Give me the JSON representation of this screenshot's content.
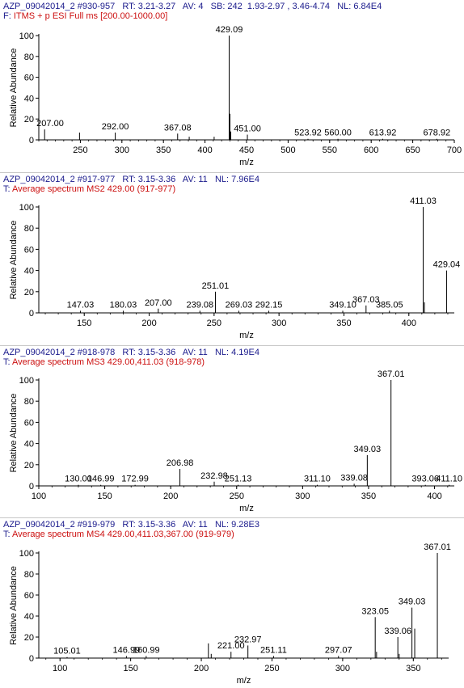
{
  "colors": {
    "header": "#1a1a8c",
    "filter_red": "#cc1010",
    "axis": "#000000",
    "peak": "#000000"
  },
  "chart_data": [
    {
      "type": "bar",
      "header_line1": "AZP_09042014_2 #930-957   RT: 3.21-3.27   AV: 4   SB: 242  1.93-2.97 , 3.46-4.74   NL: 6.84E4",
      "header_line2_prefix": "F: ",
      "header_line2_filter": "ITMS + p ESI Full ms [200.00-1000.00]",
      "xlabel": "m/z",
      "ylabel": "Relative Abundance",
      "xlim": [
        200,
        700
      ],
      "ylim": [
        0,
        100
      ],
      "xticks": [
        250,
        300,
        350,
        400,
        450,
        500,
        550,
        600,
        650,
        700
      ],
      "yticks": [
        0,
        20,
        40,
        60,
        80,
        100
      ],
      "peaks": [
        {
          "x": 207.0,
          "y": 10,
          "label": "207.00"
        },
        {
          "x": 249.0,
          "y": 7
        },
        {
          "x": 292.0,
          "y": 7,
          "label": "292.00"
        },
        {
          "x": 367.08,
          "y": 6,
          "label": "367.08"
        },
        {
          "x": 381.0,
          "y": 3
        },
        {
          "x": 411.0,
          "y": 3
        },
        {
          "x": 429.09,
          "y": 100,
          "label": "429.09"
        },
        {
          "x": 430.0,
          "y": 25
        },
        {
          "x": 431.0,
          "y": 8
        },
        {
          "x": 451.0,
          "y": 5,
          "label": "451.00"
        },
        {
          "x": 523.92,
          "y": 1,
          "label": "523.92"
        },
        {
          "x": 560.0,
          "y": 1,
          "label": "560.00"
        },
        {
          "x": 613.92,
          "y": 1,
          "label": "613.92"
        },
        {
          "x": 678.92,
          "y": 1,
          "label": "678.92"
        }
      ]
    },
    {
      "type": "bar",
      "header_line1": "AZP_09042014_2 #917-977   RT: 3.15-3.36   AV: 11   NL: 7.96E4",
      "header_line2_prefix": "T: ",
      "header_line2_filter": "Average spectrum MS2 429.00 (917-977)",
      "xlabel": "m/z",
      "ylabel": "Relative Abundance",
      "xlim": [
        115,
        435
      ],
      "ylim": [
        0,
        100
      ],
      "xticks": [
        150,
        200,
        250,
        300,
        350,
        400
      ],
      "yticks": [
        0,
        20,
        40,
        60,
        80,
        100
      ],
      "peaks": [
        {
          "x": 147.03,
          "y": 2,
          "label": "147.03"
        },
        {
          "x": 180.03,
          "y": 2,
          "label": "180.03"
        },
        {
          "x": 207.0,
          "y": 4,
          "label": "207.00"
        },
        {
          "x": 239.08,
          "y": 2,
          "label": "239.08"
        },
        {
          "x": 251.01,
          "y": 20,
          "label": "251.01"
        },
        {
          "x": 269.03,
          "y": 2,
          "label": "269.03"
        },
        {
          "x": 292.15,
          "y": 2,
          "label": "292.15"
        },
        {
          "x": 349.1,
          "y": 2,
          "label": "349.10"
        },
        {
          "x": 367.03,
          "y": 7,
          "label": "367.03"
        },
        {
          "x": 385.05,
          "y": 2,
          "label": "385.05"
        },
        {
          "x": 411.03,
          "y": 100,
          "label": "411.03"
        },
        {
          "x": 412.0,
          "y": 10
        },
        {
          "x": 429.04,
          "y": 40,
          "label": "429.04"
        }
      ]
    },
    {
      "type": "bar",
      "header_line1": "AZP_09042014_2 #918-978   RT: 3.15-3.36   AV: 11   NL: 4.19E4",
      "header_line2_prefix": "T: ",
      "header_line2_filter": "Average spectrum MS3 429.00,411.03 (918-978)",
      "xlabel": "m/z",
      "ylabel": "Relative Abundance",
      "xlim": [
        100,
        415
      ],
      "ylim": [
        0,
        100
      ],
      "xticks": [
        100,
        150,
        200,
        250,
        300,
        350,
        400
      ],
      "yticks": [
        0,
        20,
        40,
        60,
        80,
        100
      ],
      "peaks": [
        {
          "x": 130.0,
          "y": 1,
          "label": "130.00"
        },
        {
          "x": 146.99,
          "y": 1,
          "label": "146.99"
        },
        {
          "x": 172.99,
          "y": 1,
          "label": "172.99"
        },
        {
          "x": 206.98,
          "y": 16,
          "label": "206.98"
        },
        {
          "x": 232.98,
          "y": 4,
          "label": "232.98"
        },
        {
          "x": 251.13,
          "y": 1,
          "label": "251.13"
        },
        {
          "x": 311.1,
          "y": 1,
          "label": "311.10"
        },
        {
          "x": 339.08,
          "y": 2,
          "label": "339.08"
        },
        {
          "x": 349.03,
          "y": 29,
          "label": "349.03"
        },
        {
          "x": 367.01,
          "y": 100,
          "label": "367.01"
        },
        {
          "x": 393.06,
          "y": 1,
          "label": "393.06"
        },
        {
          "x": 411.1,
          "y": 1,
          "label": "411.10"
        }
      ]
    },
    {
      "type": "bar",
      "header_line1": "AZP_09042014_2 #919-979   RT: 3.15-3.36   AV: 11   NL: 9.28E3",
      "header_line2_prefix": "T: ",
      "header_line2_filter": "Average spectrum MS4 429.00,411.03,367.00 (919-979)",
      "xlabel": "m/z",
      "ylabel": "Relative Abundance",
      "xlim": [
        85,
        375
      ],
      "ylim": [
        0,
        100
      ],
      "xticks": [
        100,
        150,
        200,
        250,
        300,
        350
      ],
      "yticks": [
        0,
        20,
        40,
        60,
        80,
        100
      ],
      "peaks": [
        {
          "x": 105.01,
          "y": 1,
          "label": "105.01"
        },
        {
          "x": 146.99,
          "y": 2,
          "label": "146.99"
        },
        {
          "x": 160.99,
          "y": 2,
          "label": "160.99"
        },
        {
          "x": 205.0,
          "y": 14
        },
        {
          "x": 207.0,
          "y": 4
        },
        {
          "x": 221.0,
          "y": 6,
          "label": "221.00"
        },
        {
          "x": 232.97,
          "y": 12,
          "label": "232.97"
        },
        {
          "x": 251.11,
          "y": 2,
          "label": "251.11"
        },
        {
          "x": 297.07,
          "y": 2,
          "label": "297.07"
        },
        {
          "x": 323.05,
          "y": 39,
          "label": "323.05"
        },
        {
          "x": 324.0,
          "y": 6
        },
        {
          "x": 339.06,
          "y": 20,
          "label": "339.06"
        },
        {
          "x": 340.0,
          "y": 4
        },
        {
          "x": 349.03,
          "y": 48,
          "label": "349.03"
        },
        {
          "x": 351.0,
          "y": 28
        },
        {
          "x": 367.01,
          "y": 100,
          "label": "367.01"
        }
      ]
    }
  ]
}
